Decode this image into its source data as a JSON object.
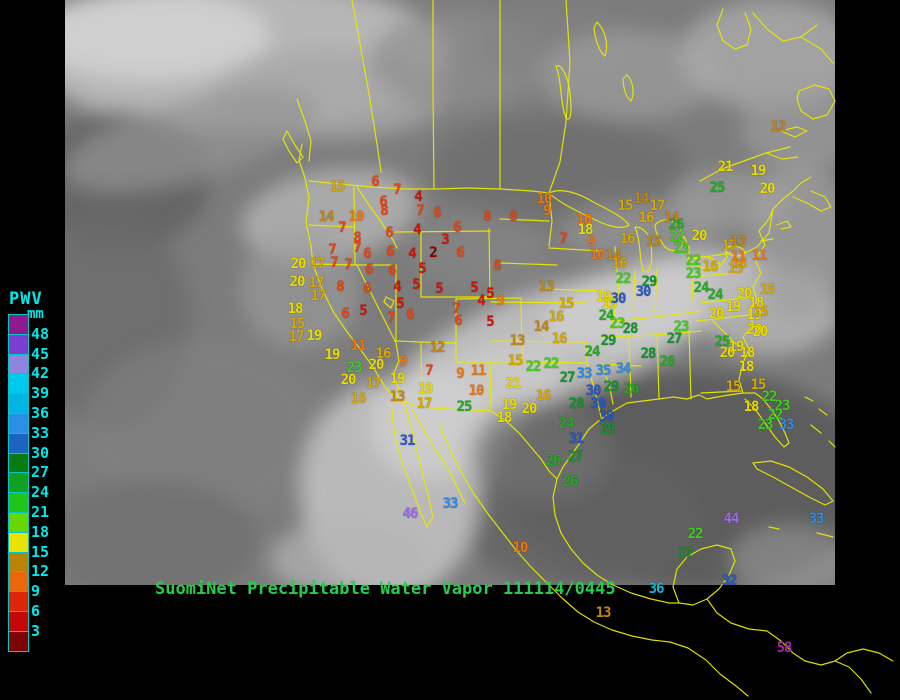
{
  "header": {
    "title": "SuomiNet Precipitable Water Vapor",
    "timestamp": "111114/0445",
    "title_color": "#26cd4c"
  },
  "legend": {
    "title": "PWV",
    "units": "mm",
    "label_color": "#00e8e8",
    "border_color": "#00c8c8",
    "labels": [
      "48",
      "45",
      "42",
      "39",
      "36",
      "33",
      "30",
      "27",
      "24",
      "21",
      "18",
      "15",
      "12",
      "9",
      "6",
      "3"
    ],
    "block_colors": [
      "#8d1b8d",
      "#7a3fd0",
      "#8f84e0",
      "#00c8ec",
      "#00b4e4",
      "#2b8fe8",
      "#1d64c0",
      "#0a7a14",
      "#13a022",
      "#22c41a",
      "#66d800",
      "#e8e400",
      "#b98406",
      "#ea670b",
      "#dd2507",
      "#c40808",
      "#7d0404"
    ]
  },
  "map": {
    "boundary_color": "#e8e800",
    "value_scale": [
      {
        "min": 48,
        "color": "#9b2d9b"
      },
      {
        "min": 44,
        "color": "#9b6ce8"
      },
      {
        "min": 39,
        "color": "#55c8ee"
      },
      {
        "min": 36,
        "color": "#00bedd"
      },
      {
        "min": 33,
        "color": "#2f8ce8"
      },
      {
        "min": 30,
        "color": "#2857c8"
      },
      {
        "min": 27,
        "color": "#12962c"
      },
      {
        "min": 24,
        "color": "#1fae22"
      },
      {
        "min": 22,
        "color": "#40cf1f"
      },
      {
        "min": 18,
        "color": "#e8dc00"
      },
      {
        "min": 15,
        "color": "#d9a800"
      },
      {
        "min": 12,
        "color": "#c68612"
      },
      {
        "min": 9,
        "color": "#ee7711"
      },
      {
        "min": 6,
        "color": "#ea4310"
      },
      {
        "min": 3,
        "color": "#cf1408"
      },
      {
        "min": 0,
        "color": "#8b0000"
      }
    ],
    "stations": [
      [
        15,
        337,
        187
      ],
      [
        6,
        375,
        182
      ],
      [
        7,
        397,
        190
      ],
      [
        4,
        418,
        197
      ],
      [
        6,
        383,
        202
      ],
      [
        8,
        384,
        211
      ],
      [
        7,
        420,
        211
      ],
      [
        6,
        437,
        213
      ],
      [
        8,
        487,
        217
      ],
      [
        14,
        326,
        217
      ],
      [
        10,
        356,
        217
      ],
      [
        7,
        342,
        228
      ],
      [
        8,
        357,
        238
      ],
      [
        7,
        357,
        248
      ],
      [
        6,
        389,
        233
      ],
      [
        4,
        417,
        230
      ],
      [
        6,
        457,
        228
      ],
      [
        3,
        445,
        240
      ],
      [
        7,
        332,
        250
      ],
      [
        6,
        367,
        254
      ],
      [
        6,
        390,
        252
      ],
      [
        4,
        412,
        254
      ],
      [
        2,
        433,
        253
      ],
      [
        6,
        460,
        253
      ],
      [
        8,
        497,
        266
      ],
      [
        20,
        298,
        264
      ],
      [
        17,
        317,
        264
      ],
      [
        7,
        334,
        263
      ],
      [
        7,
        348,
        265
      ],
      [
        6,
        369,
        270
      ],
      [
        6,
        392,
        271
      ],
      [
        5,
        422,
        269
      ],
      [
        20,
        297,
        282
      ],
      [
        17,
        316,
        283
      ],
      [
        8,
        340,
        287
      ],
      [
        6,
        367,
        289
      ],
      [
        4,
        397,
        287
      ],
      [
        5,
        416,
        285
      ],
      [
        5,
        439,
        289
      ],
      [
        5,
        474,
        288
      ],
      [
        5,
        490,
        294
      ],
      [
        17,
        318,
        296
      ],
      [
        18,
        295,
        309
      ],
      [
        6,
        345,
        314
      ],
      [
        5,
        363,
        311
      ],
      [
        5,
        400,
        304
      ],
      [
        7,
        391,
        318
      ],
      [
        6,
        410,
        315
      ],
      [
        15,
        297,
        324
      ],
      [
        17,
        296,
        337
      ],
      [
        19,
        314,
        336
      ],
      [
        7,
        456,
        309
      ],
      [
        6,
        458,
        321
      ],
      [
        4,
        481,
        301
      ],
      [
        9,
        500,
        301
      ],
      [
        5,
        490,
        322
      ],
      [
        11,
        358,
        346
      ],
      [
        12,
        437,
        348
      ],
      [
        19,
        332,
        355
      ],
      [
        16,
        383,
        354
      ],
      [
        9,
        403,
        362
      ],
      [
        20,
        376,
        365
      ],
      [
        23,
        354,
        368
      ],
      [
        7,
        429,
        371
      ],
      [
        9,
        460,
        374
      ],
      [
        11,
        478,
        371
      ],
      [
        20,
        348,
        380
      ],
      [
        17,
        373,
        384
      ],
      [
        19,
        397,
        379
      ],
      [
        19,
        425,
        389
      ],
      [
        10,
        476,
        391
      ],
      [
        16,
        358,
        399
      ],
      [
        13,
        397,
        397
      ],
      [
        17,
        424,
        404
      ],
      [
        25,
        464,
        407
      ],
      [
        15,
        566,
        304
      ],
      [
        16,
        556,
        317
      ],
      [
        14,
        541,
        327
      ],
      [
        13,
        517,
        341
      ],
      [
        16,
        559,
        339
      ],
      [
        15,
        515,
        361
      ],
      [
        22,
        533,
        367
      ],
      [
        22,
        551,
        364
      ],
      [
        21,
        513,
        384
      ],
      [
        16,
        543,
        396
      ],
      [
        19,
        509,
        405
      ],
      [
        20,
        529,
        409
      ],
      [
        18,
        504,
        418
      ],
      [
        27,
        567,
        378
      ],
      [
        33,
        584,
        374
      ],
      [
        35,
        603,
        371
      ],
      [
        34,
        623,
        369
      ],
      [
        30,
        593,
        391
      ],
      [
        29,
        611,
        387
      ],
      [
        26,
        631,
        389
      ],
      [
        28,
        576,
        404
      ],
      [
        30,
        598,
        404
      ],
      [
        30,
        606,
        417
      ],
      [
        24,
        566,
        424
      ],
      [
        29,
        607,
        429
      ],
      [
        31,
        576,
        439
      ],
      [
        26,
        553,
        461
      ],
      [
        27,
        575,
        457
      ],
      [
        26,
        570,
        482
      ],
      [
        31,
        407,
        441
      ],
      [
        33,
        450,
        504
      ],
      [
        46,
        410,
        514
      ],
      [
        10,
        520,
        548
      ],
      [
        13,
        603,
        613
      ],
      [
        24,
        592,
        352
      ],
      [
        28,
        648,
        354
      ],
      [
        29,
        608,
        341
      ],
      [
        28,
        630,
        329
      ],
      [
        19,
        609,
        304
      ],
      [
        24,
        606,
        316
      ],
      [
        23,
        617,
        324
      ],
      [
        10,
        544,
        199
      ],
      [
        9,
        547,
        211
      ],
      [
        8,
        513,
        217
      ],
      [
        10,
        584,
        220
      ],
      [
        18,
        585,
        230
      ],
      [
        7,
        563,
        239
      ],
      [
        9,
        591,
        242
      ],
      [
        13,
        546,
        287
      ],
      [
        14,
        641,
        199
      ],
      [
        15,
        625,
        206
      ],
      [
        17,
        657,
        206
      ],
      [
        16,
        646,
        218
      ],
      [
        14,
        671,
        218
      ],
      [
        26,
        676,
        225
      ],
      [
        16,
        627,
        239
      ],
      [
        13,
        653,
        242
      ],
      [
        22,
        677,
        237
      ],
      [
        20,
        699,
        236
      ],
      [
        23,
        681,
        249
      ],
      [
        10,
        597,
        255
      ],
      [
        14,
        613,
        256
      ],
      [
        16,
        619,
        264
      ],
      [
        22,
        693,
        261
      ],
      [
        23,
        693,
        274
      ],
      [
        17,
        729,
        246
      ],
      [
        13,
        738,
        242
      ],
      [
        16,
        739,
        264
      ],
      [
        11,
        738,
        257
      ],
      [
        11,
        759,
        256
      ],
      [
        16,
        710,
        267
      ],
      [
        15,
        735,
        269
      ],
      [
        22,
        623,
        279
      ],
      [
        29,
        649,
        282
      ],
      [
        30,
        643,
        292
      ],
      [
        19,
        603,
        297
      ],
      [
        30,
        618,
        299
      ],
      [
        24,
        701,
        288
      ],
      [
        24,
        715,
        295
      ],
      [
        20,
        744,
        294
      ],
      [
        15,
        767,
        290
      ],
      [
        18,
        756,
        303
      ],
      [
        19,
        754,
        315
      ],
      [
        20,
        754,
        330
      ],
      [
        19,
        736,
        347
      ],
      [
        18,
        746,
        367
      ],
      [
        15,
        758,
        385
      ],
      [
        15,
        733,
        387
      ],
      [
        22,
        769,
        397
      ],
      [
        18,
        751,
        407
      ],
      [
        23,
        782,
        406
      ],
      [
        22,
        775,
        415
      ],
      [
        23,
        765,
        425
      ],
      [
        33,
        786,
        425
      ],
      [
        20,
        716,
        314
      ],
      [
        19,
        733,
        307
      ],
      [
        15,
        760,
        312
      ],
      [
        20,
        760,
        332
      ],
      [
        23,
        681,
        327
      ],
      [
        27,
        674,
        339
      ],
      [
        25,
        722,
        342
      ],
      [
        20,
        727,
        353
      ],
      [
        18,
        747,
        353
      ],
      [
        26,
        667,
        362
      ],
      [
        12,
        778,
        127
      ],
      [
        25,
        717,
        188
      ],
      [
        21,
        725,
        167
      ],
      [
        19,
        758,
        171
      ],
      [
        20,
        767,
        189
      ],
      [
        44,
        731,
        519
      ],
      [
        22,
        695,
        534
      ],
      [
        27,
        685,
        554
      ],
      [
        33,
        816,
        519
      ],
      [
        36,
        656,
        589
      ],
      [
        32,
        729,
        581
      ],
      [
        58,
        784,
        648
      ]
    ]
  }
}
